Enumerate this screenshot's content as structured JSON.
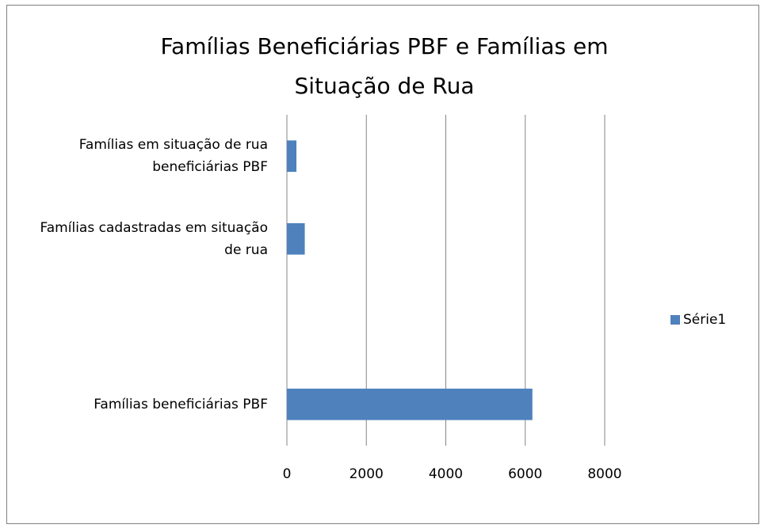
{
  "chart_data": {
    "type": "barh",
    "title": "Famílias Beneficiárias PBF e Famílias em Situação de Rua",
    "categories": [
      "Famílias beneficiárias  PBF",
      null,
      "Famílias cadastradas em situação de rua",
      "Famílias em situação de rua beneficiárias PBF"
    ],
    "series": [
      {
        "name": "Série1",
        "color": "#4f81bd",
        "values": [
          6180,
          null,
          450,
          240
        ]
      }
    ],
    "xlim": [
      0,
      8000
    ],
    "xticks": [
      0,
      2000,
      4000,
      6000,
      8000
    ],
    "grid": true,
    "legend": "right"
  }
}
